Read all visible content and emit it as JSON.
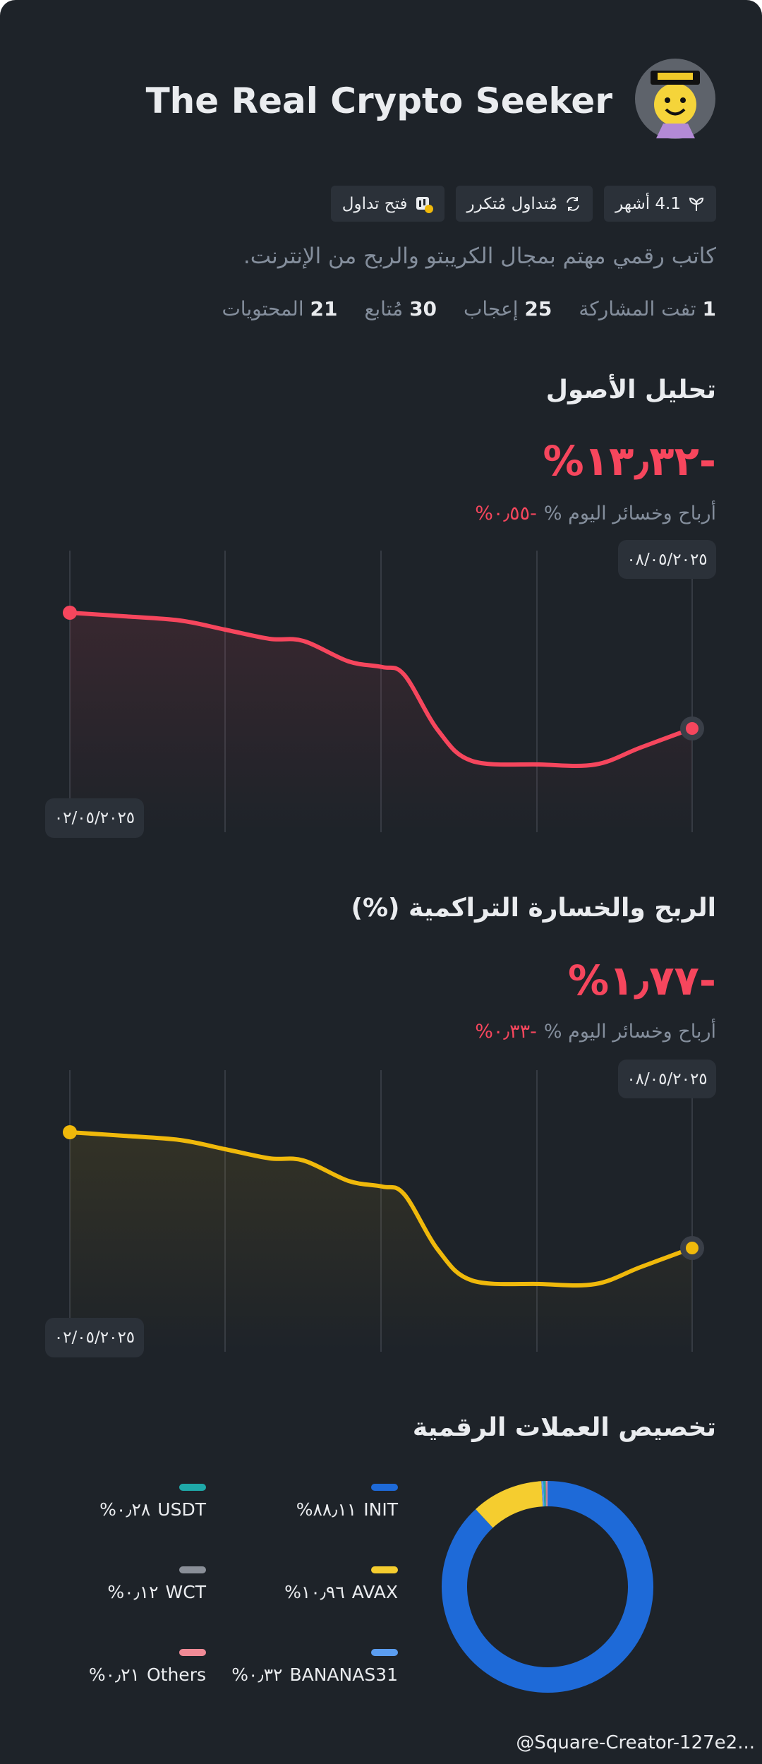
{
  "profile": {
    "name": "The Real Crypto Seeker",
    "tags": [
      "4.1 أشهر",
      "مُتداول مُتكرر",
      "فتح تداول"
    ],
    "bio": "كاتب رقمي مهتم بمجال الكريبتو والربح من الإنترنت.",
    "stats": [
      {
        "value": 1,
        "label": "تفت المشاركة"
      },
      {
        "value": 25,
        "label": "إعجاب"
      },
      {
        "value": 30,
        "label": "مُتابع"
      },
      {
        "value": 21,
        "label": "المحتويات"
      }
    ]
  },
  "asset_analysis": {
    "title": "تحليل الأصول",
    "value": "%١٣٫٣٢-",
    "today_label": "أرباح وخسائر اليوم %",
    "today_value": "%٠٫٥٥-",
    "end_date": "٠٨/٠٥/٢٠٢٥",
    "start_date": "٠٢/٠٥/٢٠٢٥"
  },
  "cumulative_pnl": {
    "title": "الربح والخسارة التراكمية (%)",
    "value": "%١٫٧٧-",
    "today_label": "أرباح وخسائر اليوم %",
    "today_value": "%٠٫٣٣-",
    "end_date": "٠٨/٠٥/٢٠٢٥",
    "start_date": "٠٢/٠٥/٢٠٢٥"
  },
  "allocation": {
    "title": "تخصيص العملات الرقمية",
    "items": [
      {
        "name": "INIT",
        "value": 88.11,
        "label": "%٨٨٫١١",
        "color": "#1e6ad8"
      },
      {
        "name": "AVAX",
        "value": 10.96,
        "label": "%١٠٫٩٦",
        "color": "#f5cd2f"
      },
      {
        "name": "BANANAS31",
        "value": 0.32,
        "label": "%٠٫٣٢",
        "color": "#5b9df0"
      },
      {
        "name": "USDT",
        "value": 0.28,
        "label": "%٠٫٢٨",
        "color": "#1fa9a9"
      },
      {
        "name": "WCT",
        "value": 0.12,
        "label": "%٠٫١٢",
        "color": "#8a8f98"
      },
      {
        "name": "Others",
        "value": 0.21,
        "label": "%٠٫٢١",
        "color": "#f08a96"
      }
    ]
  },
  "watermark": "@Square-Creator-127e2..."
}
